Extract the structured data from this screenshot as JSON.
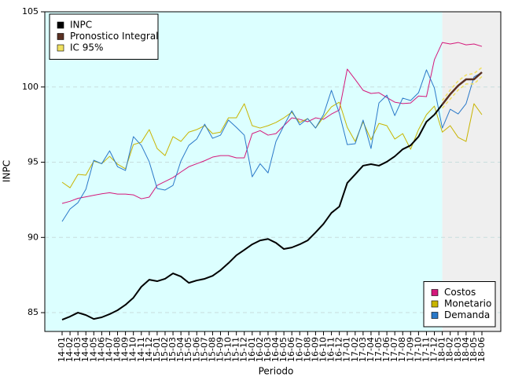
{
  "chart_data": {
    "type": "line",
    "x_label": "Periodo",
    "y_label": "INPC",
    "categories": [
      "14-01",
      "14-02",
      "14-03",
      "14-04",
      "14-05",
      "14-06",
      "14-07",
      "14-08",
      "14-09",
      "14-10",
      "14-11",
      "14-12",
      "15-01",
      "15-02",
      "15-03",
      "15-04",
      "15-05",
      "15-06",
      "15-07",
      "15-08",
      "15-09",
      "15-10",
      "15-11",
      "15-12",
      "16-01",
      "16-02",
      "16-03",
      "16-04",
      "16-05",
      "16-06",
      "16-07",
      "16-08",
      "16-09",
      "16-10",
      "16-11",
      "16-12",
      "17-01",
      "17-02",
      "17-03",
      "17-04",
      "17-05",
      "17-06",
      "17-07",
      "17-08",
      "17-09",
      "17-10",
      "17-11",
      "17-12",
      "18-01",
      "18-02",
      "18-03",
      "18-04",
      "18-05",
      "18-06"
    ],
    "ylim": [
      83.75,
      105
    ],
    "yticks": [
      85,
      90,
      95,
      100,
      105
    ],
    "grid": true,
    "shaded_regions": [
      {
        "from": "14-01",
        "to": "18-01",
        "color": "#dcffff"
      },
      {
        "from": "18-01",
        "to": "18-06",
        "color": "#efefef"
      }
    ],
    "series": [
      {
        "name": "Costos",
        "color": "#d4187a",
        "width": 1,
        "legend": "lower right",
        "values": [
          92.26,
          92.4,
          92.6,
          92.7,
          92.8,
          92.9,
          92.97,
          92.88,
          92.88,
          92.83,
          92.57,
          92.68,
          93.46,
          93.72,
          93.98,
          94.35,
          94.7,
          94.9,
          95.1,
          95.34,
          95.44,
          95.44,
          95.29,
          95.29,
          96.9,
          97.1,
          96.8,
          96.9,
          97.43,
          97.95,
          97.85,
          97.69,
          97.95,
          97.85,
          98.2,
          98.47,
          101.19,
          100.5,
          99.78,
          99.57,
          99.62,
          99.3,
          98.99,
          98.9,
          98.94,
          99.4,
          99.36,
          101.81,
          102.96,
          102.86,
          102.96,
          102.8,
          102.86,
          102.7
        ]
      },
      {
        "name": "Monetario",
        "color": "#c8b400",
        "width": 1,
        "legend": "lower right",
        "values": [
          93.67,
          93.3,
          94.19,
          94.14,
          95.08,
          94.9,
          95.39,
          94.87,
          94.56,
          96.17,
          96.33,
          97.17,
          95.91,
          95.44,
          96.7,
          96.38,
          97.0,
          97.17,
          97.43,
          96.9,
          97.0,
          97.95,
          97.95,
          98.89,
          97.43,
          97.27,
          97.43,
          97.64,
          97.95,
          98.32,
          97.64,
          97.9,
          97.27,
          98.0,
          98.68,
          98.99,
          97.32,
          96.38,
          97.69,
          96.49,
          97.58,
          97.43,
          96.54,
          96.9,
          95.86,
          97.17,
          98.16,
          98.73,
          97.0,
          97.43,
          96.65,
          96.38,
          98.89,
          98.16
        ]
      },
      {
        "name": "Demanda",
        "color": "#2a78c8",
        "width": 1,
        "legend": "lower right",
        "values": [
          91.06,
          91.89,
          92.31,
          93.2,
          95.13,
          94.9,
          95.76,
          94.7,
          94.45,
          96.7,
          96.12,
          95.03,
          93.25,
          93.15,
          93.46,
          95.08,
          96.12,
          96.54,
          97.53,
          96.59,
          96.8,
          97.8,
          97.32,
          96.8,
          94.03,
          94.9,
          94.29,
          96.38,
          97.43,
          98.42,
          97.48,
          97.9,
          97.27,
          98.16,
          99.78,
          98.26,
          96.17,
          96.23,
          97.8,
          95.91,
          98.94,
          99.46,
          98.1,
          99.26,
          99.1,
          99.62,
          101.14,
          99.93,
          97.27,
          98.52,
          98.21,
          98.89,
          100.67,
          100.98
        ]
      },
      {
        "name": "IC 95%",
        "color": "#f0e060",
        "width": 1.5,
        "dashed": true,
        "legend": "upper left",
        "lower": [
          null,
          null,
          null,
          null,
          null,
          null,
          null,
          null,
          null,
          null,
          null,
          null,
          null,
          null,
          null,
          null,
          null,
          null,
          null,
          null,
          null,
          null,
          null,
          null,
          null,
          null,
          null,
          null,
          null,
          null,
          null,
          null,
          null,
          null,
          null,
          null,
          null,
          null,
          null,
          null,
          null,
          null,
          null,
          null,
          null,
          null,
          null,
          null,
          98.6,
          99.2,
          99.8,
          100.2,
          100.2,
          100.7
        ],
        "upper": [
          null,
          null,
          null,
          null,
          null,
          null,
          null,
          null,
          null,
          null,
          null,
          null,
          null,
          null,
          null,
          null,
          null,
          null,
          null,
          null,
          null,
          null,
          null,
          null,
          null,
          null,
          null,
          null,
          null,
          null,
          null,
          null,
          null,
          null,
          null,
          null,
          null,
          null,
          null,
          null,
          null,
          null,
          null,
          null,
          null,
          null,
          null,
          null,
          99.1,
          99.8,
          100.4,
          100.8,
          100.9,
          101.3
        ]
      },
      {
        "name": "INPC",
        "color": "#000000",
        "width": 2,
        "legend": "upper left",
        "values": [
          84.53,
          84.74,
          85.0,
          84.84,
          84.58,
          84.69,
          84.9,
          85.16,
          85.52,
          85.99,
          86.72,
          87.19,
          87.09,
          87.25,
          87.61,
          87.4,
          86.98,
          87.14,
          87.25,
          87.45,
          87.82,
          88.29,
          88.81,
          89.17,
          89.54,
          89.8,
          89.9,
          89.64,
          89.23,
          89.33,
          89.54,
          89.8,
          90.33,
          90.9,
          91.63,
          92.05,
          93.62,
          94.19,
          94.77,
          94.87,
          94.77,
          95.03,
          95.39,
          95.86,
          96.12,
          96.7,
          97.69,
          98.16,
          98.84,
          null,
          null,
          null,
          null,
          null
        ]
      },
      {
        "name": "Pronostico Integral",
        "color": "#5a3022",
        "width": 2.5,
        "legend": "upper left",
        "values": [
          null,
          null,
          null,
          null,
          null,
          null,
          null,
          null,
          null,
          null,
          null,
          null,
          null,
          null,
          null,
          null,
          null,
          null,
          null,
          null,
          null,
          null,
          null,
          null,
          null,
          null,
          null,
          null,
          null,
          null,
          null,
          null,
          null,
          null,
          null,
          null,
          null,
          null,
          null,
          null,
          null,
          null,
          null,
          null,
          null,
          null,
          null,
          null,
          98.84,
          99.52,
          100.09,
          100.51,
          100.51,
          100.98
        ]
      }
    ],
    "legend_order": {
      "upper left": [
        "INPC",
        "Pronostico Integral",
        "IC 95%"
      ],
      "lower right": [
        "Costos",
        "Monetario",
        "Demanda"
      ]
    }
  }
}
